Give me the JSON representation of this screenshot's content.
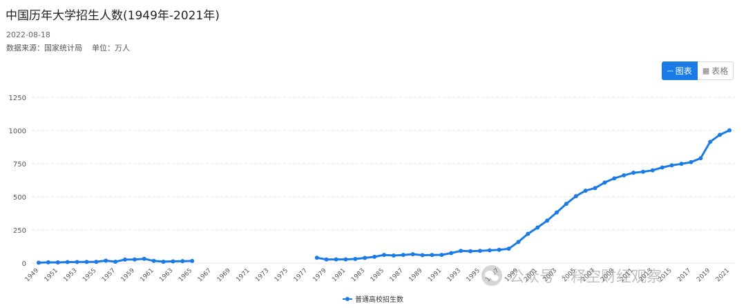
{
  "header": {
    "title": "中国历年大学招生人数(1949年-2021年)",
    "date": "2022-08-18",
    "source": "数据来源：国家统计局",
    "unit": "单位：万人"
  },
  "view_toggle": {
    "chart_label": "图表",
    "table_label": "表格",
    "active": "chart"
  },
  "colors": {
    "accent": "#1a7ae6",
    "grid": "#e6e6e6"
  },
  "watermark": {
    "left": "公众号",
    "right": "释空财经观察"
  },
  "chart_data": {
    "type": "line",
    "legend": "普通高校招生数",
    "legend_position": "bottom",
    "grid": true,
    "ylim": [
      0,
      1250
    ],
    "yticks": [
      0,
      250,
      500,
      750,
      1000,
      1250
    ],
    "xlim": [
      1949,
      2021
    ],
    "xticks": [
      "1949",
      "1951",
      "1953",
      "1955",
      "1957",
      "1959",
      "1961",
      "1963",
      "1965",
      "1967",
      "1969",
      "1971",
      "1973",
      "1975",
      "1977",
      "1979",
      "1981",
      "1983",
      "1985",
      "1987",
      "1989",
      "1991",
      "1993",
      "1995",
      "1997",
      "1999",
      "2001",
      "2003",
      "2005",
      "2007",
      "2009",
      "2011",
      "2013",
      "2015",
      "2017",
      "2019",
      "2021"
    ],
    "series": [
      {
        "name": "普通高校招生数",
        "x": [
          1949,
          1950,
          1951,
          1952,
          1953,
          1954,
          1955,
          1956,
          1957,
          1958,
          1959,
          1960,
          1961,
          1962,
          1963,
          1964,
          1965,
          1966,
          1967,
          1968,
          1969,
          1970,
          1971,
          1972,
          1973,
          1974,
          1975,
          1976,
          1977,
          1978,
          1979,
          1980,
          1981,
          1982,
          1983,
          1984,
          1985,
          1986,
          1987,
          1988,
          1989,
          1990,
          1991,
          1992,
          1993,
          1994,
          1995,
          1996,
          1997,
          1998,
          1999,
          2000,
          2001,
          2002,
          2003,
          2004,
          2005,
          2006,
          2007,
          2008,
          2009,
          2010,
          2011,
          2012,
          2013,
          2014,
          2015,
          2016,
          2017,
          2018,
          2019,
          2020,
          2021
        ],
        "values": [
          3.1,
          5.8,
          5.3,
          7.9,
          8.2,
          9.2,
          9.8,
          18.5,
          10.6,
          26.5,
          27.4,
          32.3,
          16.9,
          10.7,
          13.3,
          14.7,
          16.4,
          null,
          null,
          null,
          null,
          null,
          null,
          null,
          null,
          null,
          null,
          null,
          null,
          40.2,
          27.5,
          28.1,
          27.9,
          31.5,
          39.1,
          47.5,
          61.9,
          57.2,
          61.7,
          67.0,
          59.7,
          60.9,
          62.0,
          75.4,
          92.4,
          90.0,
          92.6,
          96.6,
          100.0,
          108.4,
          159.7,
          220.6,
          268.3,
          320.5,
          382.2,
          447.3,
          504.5,
          546.1,
          565.9,
          607.7,
          639.5,
          661.8,
          681.5,
          688.8,
          699.8,
          721.4,
          737.8,
          748.6,
          761.5,
          791.0,
          914.9,
          967.5,
          1001.3
        ]
      }
    ]
  }
}
